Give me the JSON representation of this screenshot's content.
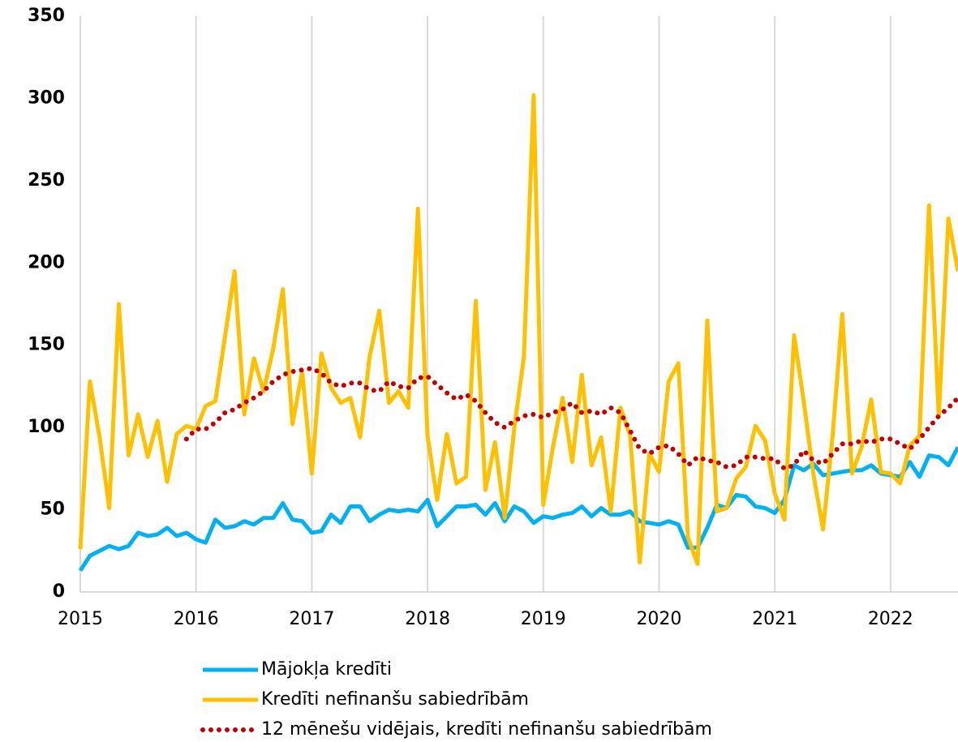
{
  "chart_data": {
    "type": "line",
    "x": [
      2015,
      2015.083,
      2015.167,
      2015.25,
      2015.333,
      2015.417,
      2015.5,
      2015.583,
      2015.667,
      2015.75,
      2015.833,
      2015.917,
      2016,
      2016.083,
      2016.167,
      2016.25,
      2016.333,
      2016.417,
      2016.5,
      2016.583,
      2016.667,
      2016.75,
      2016.833,
      2016.917,
      2017,
      2017.083,
      2017.167,
      2017.25,
      2017.333,
      2017.417,
      2017.5,
      2017.583,
      2017.667,
      2017.75,
      2017.833,
      2017.917,
      2018,
      2018.083,
      2018.167,
      2018.25,
      2018.333,
      2018.417,
      2018.5,
      2018.583,
      2018.667,
      2018.75,
      2018.833,
      2018.917,
      2019,
      2019.083,
      2019.167,
      2019.25,
      2019.333,
      2019.417,
      2019.5,
      2019.583,
      2019.667,
      2019.75,
      2019.833,
      2019.917,
      2020,
      2020.083,
      2020.167,
      2020.25,
      2020.333,
      2020.417,
      2020.5,
      2020.583,
      2020.667,
      2020.75,
      2020.833,
      2020.917,
      2021,
      2021.083,
      2021.167,
      2021.25,
      2021.333,
      2021.417,
      2021.5,
      2021.583,
      2021.667,
      2021.75,
      2021.833,
      2021.917,
      2022,
      2022.083,
      2022.167,
      2022.25,
      2022.333,
      2022.417,
      2022.5,
      2022.583
    ],
    "series": [
      {
        "name": "Mājokļa kredīti",
        "color": "#00b0f0",
        "style": "solid",
        "values": [
          13,
          22,
          25,
          28,
          26,
          28,
          36,
          34,
          35,
          39,
          34,
          36,
          32,
          30,
          44,
          39,
          40,
          43,
          41,
          45,
          45,
          54,
          44,
          43,
          36,
          37,
          47,
          42,
          52,
          52,
          43,
          47,
          50,
          49,
          50,
          49,
          56,
          40,
          46,
          52,
          52,
          53,
          47,
          54,
          43,
          52,
          49,
          42,
          46,
          45,
          47,
          48,
          52,
          46,
          51,
          47,
          47,
          49,
          43,
          42,
          41,
          43,
          41,
          27,
          27,
          39,
          53,
          51,
          59,
          58,
          52,
          51,
          48,
          56,
          77,
          74,
          78,
          71,
          72,
          73,
          74,
          74,
          77,
          72,
          71,
          70,
          79,
          70,
          83,
          82,
          77,
          88
        ]
      },
      {
        "name": "Kredīti nefinanšu sabiedrībām",
        "color": "#ffc000",
        "style": "solid",
        "values": [
          26,
          128,
          94,
          51,
          175,
          83,
          108,
          82,
          104,
          67,
          96,
          101,
          99,
          113,
          116,
          155,
          195,
          108,
          142,
          122,
          148,
          184,
          102,
          134,
          72,
          145,
          124,
          115,
          118,
          94,
          143,
          171,
          115,
          122,
          112,
          233,
          95,
          56,
          96,
          66,
          70,
          177,
          62,
          91,
          45,
          100,
          143,
          302,
          53,
          88,
          118,
          79,
          132,
          77,
          94,
          49,
          112,
          95,
          18,
          84,
          73,
          128,
          139,
          33,
          17,
          165,
          49,
          51,
          69,
          76,
          101,
          92,
          60,
          44,
          156,
          116,
          72,
          38,
          95,
          169,
          72,
          88,
          117,
          73,
          72,
          66,
          89,
          95,
          235,
          107,
          227,
          195
        ]
      },
      {
        "name": "12 mēnešu vidējais, kredīti nefinanšu sabiedrībām",
        "color": "#c00000",
        "style": "dotted",
        "values": [
          null,
          null,
          null,
          null,
          null,
          null,
          null,
          null,
          null,
          null,
          null,
          93,
          99,
          99,
          103,
          109,
          111,
          115,
          118,
          122,
          128,
          132,
          134,
          135,
          136,
          133,
          127,
          125,
          127,
          127,
          123,
          122,
          128,
          125,
          124,
          130,
          131,
          126,
          121,
          117,
          120,
          116,
          109,
          103,
          100,
          104,
          107,
          108,
          106,
          109,
          111,
          115,
          109,
          110,
          108,
          112,
          109,
          98,
          87,
          84,
          88,
          89,
          84,
          77,
          82,
          80,
          79,
          76,
          77,
          82,
          82,
          81,
          81,
          75,
          77,
          86,
          80,
          78,
          84,
          90,
          90,
          92,
          91,
          93,
          93,
          90,
          87,
          93,
          100,
          107,
          112,
          118
        ]
      }
    ],
    "xlim": [
      2015,
      2022.583
    ],
    "xticks": [
      2015,
      2016,
      2017,
      2018,
      2019,
      2020,
      2021,
      2022
    ],
    "ylim": [
      0,
      350
    ],
    "yticks": [
      0,
      50,
      100,
      150,
      200,
      250,
      300,
      350
    ],
    "grid": true,
    "legend": "bottom"
  }
}
